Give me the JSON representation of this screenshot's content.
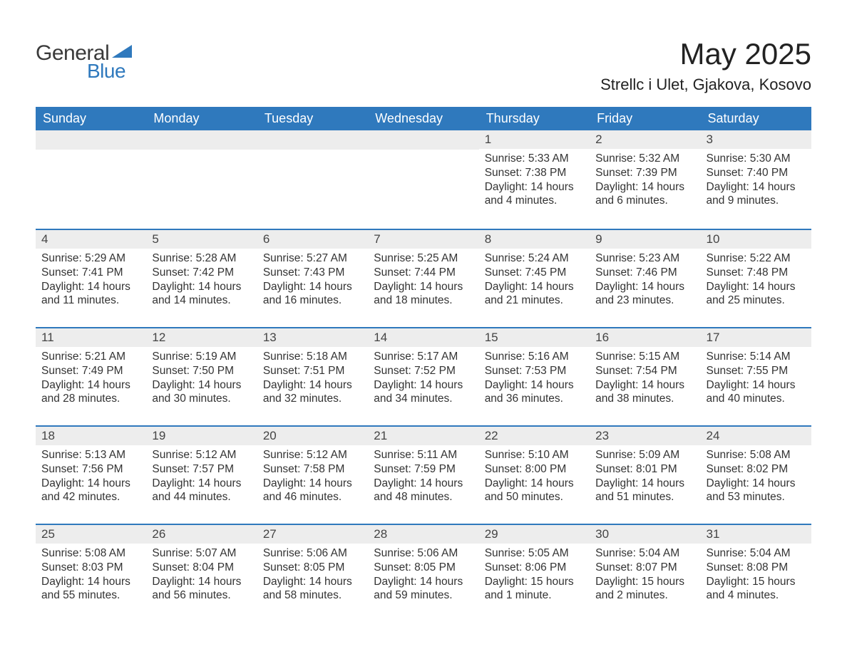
{
  "logo": {
    "text1": "General",
    "text2": "Blue",
    "triangle_color": "#2f79bd"
  },
  "title": "May 2025",
  "location": "Strellc i Ulet, Gjakova, Kosovo",
  "header_bg": "#2f79bd",
  "header_fg": "#ffffff",
  "daynum_bg": "#ededed",
  "row_border_color": "#2f79bd",
  "text_color": "#333333",
  "days_of_week": [
    "Sunday",
    "Monday",
    "Tuesday",
    "Wednesday",
    "Thursday",
    "Friday",
    "Saturday"
  ],
  "weeks": [
    [
      null,
      null,
      null,
      null,
      {
        "n": "1",
        "sunrise": "Sunrise: 5:33 AM",
        "sunset": "Sunset: 7:38 PM",
        "daylight": "Daylight: 14 hours and 4 minutes."
      },
      {
        "n": "2",
        "sunrise": "Sunrise: 5:32 AM",
        "sunset": "Sunset: 7:39 PM",
        "daylight": "Daylight: 14 hours and 6 minutes."
      },
      {
        "n": "3",
        "sunrise": "Sunrise: 5:30 AM",
        "sunset": "Sunset: 7:40 PM",
        "daylight": "Daylight: 14 hours and 9 minutes."
      }
    ],
    [
      {
        "n": "4",
        "sunrise": "Sunrise: 5:29 AM",
        "sunset": "Sunset: 7:41 PM",
        "daylight": "Daylight: 14 hours and 11 minutes."
      },
      {
        "n": "5",
        "sunrise": "Sunrise: 5:28 AM",
        "sunset": "Sunset: 7:42 PM",
        "daylight": "Daylight: 14 hours and 14 minutes."
      },
      {
        "n": "6",
        "sunrise": "Sunrise: 5:27 AM",
        "sunset": "Sunset: 7:43 PM",
        "daylight": "Daylight: 14 hours and 16 minutes."
      },
      {
        "n": "7",
        "sunrise": "Sunrise: 5:25 AM",
        "sunset": "Sunset: 7:44 PM",
        "daylight": "Daylight: 14 hours and 18 minutes."
      },
      {
        "n": "8",
        "sunrise": "Sunrise: 5:24 AM",
        "sunset": "Sunset: 7:45 PM",
        "daylight": "Daylight: 14 hours and 21 minutes."
      },
      {
        "n": "9",
        "sunrise": "Sunrise: 5:23 AM",
        "sunset": "Sunset: 7:46 PM",
        "daylight": "Daylight: 14 hours and 23 minutes."
      },
      {
        "n": "10",
        "sunrise": "Sunrise: 5:22 AM",
        "sunset": "Sunset: 7:48 PM",
        "daylight": "Daylight: 14 hours and 25 minutes."
      }
    ],
    [
      {
        "n": "11",
        "sunrise": "Sunrise: 5:21 AM",
        "sunset": "Sunset: 7:49 PM",
        "daylight": "Daylight: 14 hours and 28 minutes."
      },
      {
        "n": "12",
        "sunrise": "Sunrise: 5:19 AM",
        "sunset": "Sunset: 7:50 PM",
        "daylight": "Daylight: 14 hours and 30 minutes."
      },
      {
        "n": "13",
        "sunrise": "Sunrise: 5:18 AM",
        "sunset": "Sunset: 7:51 PM",
        "daylight": "Daylight: 14 hours and 32 minutes."
      },
      {
        "n": "14",
        "sunrise": "Sunrise: 5:17 AM",
        "sunset": "Sunset: 7:52 PM",
        "daylight": "Daylight: 14 hours and 34 minutes."
      },
      {
        "n": "15",
        "sunrise": "Sunrise: 5:16 AM",
        "sunset": "Sunset: 7:53 PM",
        "daylight": "Daylight: 14 hours and 36 minutes."
      },
      {
        "n": "16",
        "sunrise": "Sunrise: 5:15 AM",
        "sunset": "Sunset: 7:54 PM",
        "daylight": "Daylight: 14 hours and 38 minutes."
      },
      {
        "n": "17",
        "sunrise": "Sunrise: 5:14 AM",
        "sunset": "Sunset: 7:55 PM",
        "daylight": "Daylight: 14 hours and 40 minutes."
      }
    ],
    [
      {
        "n": "18",
        "sunrise": "Sunrise: 5:13 AM",
        "sunset": "Sunset: 7:56 PM",
        "daylight": "Daylight: 14 hours and 42 minutes."
      },
      {
        "n": "19",
        "sunrise": "Sunrise: 5:12 AM",
        "sunset": "Sunset: 7:57 PM",
        "daylight": "Daylight: 14 hours and 44 minutes."
      },
      {
        "n": "20",
        "sunrise": "Sunrise: 5:12 AM",
        "sunset": "Sunset: 7:58 PM",
        "daylight": "Daylight: 14 hours and 46 minutes."
      },
      {
        "n": "21",
        "sunrise": "Sunrise: 5:11 AM",
        "sunset": "Sunset: 7:59 PM",
        "daylight": "Daylight: 14 hours and 48 minutes."
      },
      {
        "n": "22",
        "sunrise": "Sunrise: 5:10 AM",
        "sunset": "Sunset: 8:00 PM",
        "daylight": "Daylight: 14 hours and 50 minutes."
      },
      {
        "n": "23",
        "sunrise": "Sunrise: 5:09 AM",
        "sunset": "Sunset: 8:01 PM",
        "daylight": "Daylight: 14 hours and 51 minutes."
      },
      {
        "n": "24",
        "sunrise": "Sunrise: 5:08 AM",
        "sunset": "Sunset: 8:02 PM",
        "daylight": "Daylight: 14 hours and 53 minutes."
      }
    ],
    [
      {
        "n": "25",
        "sunrise": "Sunrise: 5:08 AM",
        "sunset": "Sunset: 8:03 PM",
        "daylight": "Daylight: 14 hours and 55 minutes."
      },
      {
        "n": "26",
        "sunrise": "Sunrise: 5:07 AM",
        "sunset": "Sunset: 8:04 PM",
        "daylight": "Daylight: 14 hours and 56 minutes."
      },
      {
        "n": "27",
        "sunrise": "Sunrise: 5:06 AM",
        "sunset": "Sunset: 8:05 PM",
        "daylight": "Daylight: 14 hours and 58 minutes."
      },
      {
        "n": "28",
        "sunrise": "Sunrise: 5:06 AM",
        "sunset": "Sunset: 8:05 PM",
        "daylight": "Daylight: 14 hours and 59 minutes."
      },
      {
        "n": "29",
        "sunrise": "Sunrise: 5:05 AM",
        "sunset": "Sunset: 8:06 PM",
        "daylight": "Daylight: 15 hours and 1 minute."
      },
      {
        "n": "30",
        "sunrise": "Sunrise: 5:04 AM",
        "sunset": "Sunset: 8:07 PM",
        "daylight": "Daylight: 15 hours and 2 minutes."
      },
      {
        "n": "31",
        "sunrise": "Sunrise: 5:04 AM",
        "sunset": "Sunset: 8:08 PM",
        "daylight": "Daylight: 15 hours and 4 minutes."
      }
    ]
  ]
}
